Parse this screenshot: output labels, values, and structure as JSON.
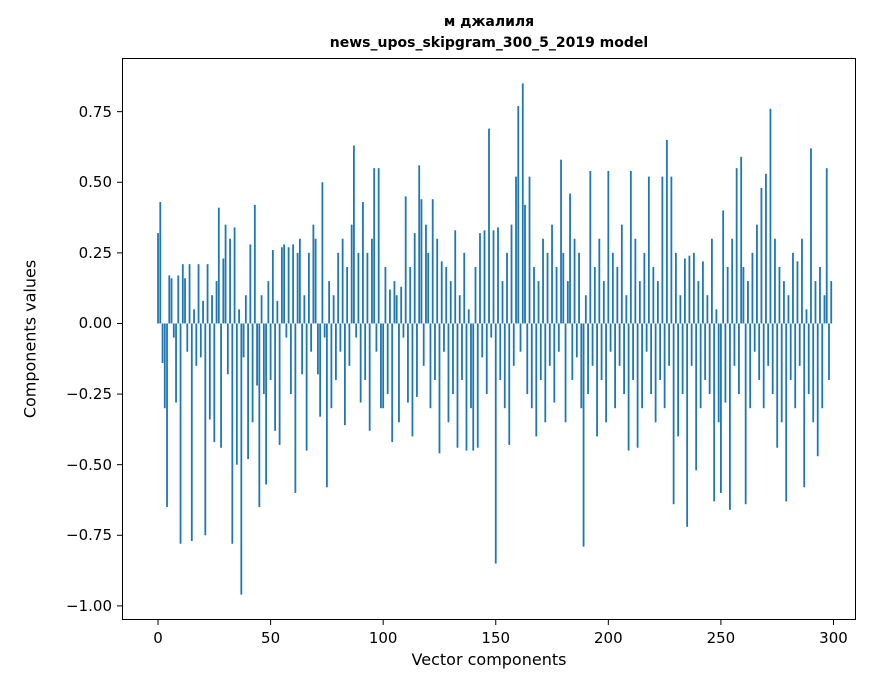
{
  "figure": {
    "title_line1": "м джалиля",
    "title_line2": "news_upos_skipgram_300_5_2019 model",
    "xlabel": "Vector components",
    "ylabel": "Components values"
  },
  "chart_data": {
    "type": "bar",
    "title": "м джалиля\nnews_upos_skipgram_300_5_2019 model",
    "xlabel": "Vector components",
    "ylabel": "Components values",
    "bar_color": "#1f77b4",
    "grid": false,
    "legend": null,
    "x_ticks": [
      0,
      50,
      100,
      150,
      200,
      250,
      300
    ],
    "y_ticks": [
      -1.0,
      -0.75,
      -0.5,
      -0.25,
      0.0,
      0.25,
      0.5,
      0.75
    ],
    "xlim": [
      -16,
      310
    ],
    "ylim": [
      -1.05,
      0.94
    ],
    "x_start": 0,
    "values": [
      0.32,
      0.43,
      -0.14,
      -0.3,
      -0.65,
      0.17,
      0.16,
      -0.05,
      -0.28,
      0.17,
      -0.78,
      0.21,
      0.16,
      -0.1,
      0.21,
      -0.77,
      0.05,
      -0.15,
      0.21,
      -0.12,
      0.08,
      -0.75,
      0.21,
      -0.34,
      0.1,
      -0.42,
      0.15,
      0.41,
      -0.44,
      0.23,
      0.35,
      -0.18,
      0.3,
      -0.78,
      0.34,
      -0.5,
      0.05,
      -0.96,
      -0.12,
      0.1,
      -0.48,
      0.28,
      -0.35,
      0.42,
      -0.22,
      -0.65,
      0.1,
      -0.25,
      -0.57,
      0.15,
      -0.2,
      0.26,
      -0.38,
      0.08,
      -0.43,
      0.27,
      0.28,
      -0.05,
      0.27,
      -0.25,
      0.28,
      -0.6,
      0.25,
      0.3,
      -0.18,
      0.1,
      -0.45,
      0.25,
      -0.1,
      0.35,
      0.3,
      -0.18,
      -0.33,
      0.5,
      -0.05,
      -0.58,
      0.15,
      -0.3,
      0.1,
      -0.2,
      0.25,
      -0.1,
      0.3,
      -0.36,
      0.2,
      -0.15,
      0.35,
      0.63,
      -0.05,
      0.25,
      -0.28,
      0.43,
      -0.2,
      0.25,
      -0.38,
      0.3,
      0.55,
      -0.1,
      0.55,
      -0.3,
      -0.3,
      0.2,
      -0.25,
      0.12,
      -0.42,
      0.15,
      0.1,
      -0.35,
      0.13,
      -0.05,
      0.45,
      -0.28,
      0.2,
      -0.4,
      0.32,
      -0.26,
      0.56,
      0.44,
      -0.15,
      0.35,
      0.25,
      -0.3,
      0.44,
      -0.2,
      0.3,
      -0.46,
      0.22,
      -0.1,
      0.2,
      -0.35,
      0.15,
      -0.25,
      0.33,
      -0.44,
      0.1,
      -0.2,
      0.25,
      -0.45,
      0.05,
      -0.3,
      -0.45,
      0.2,
      -0.44,
      0.32,
      -0.12,
      0.33,
      -0.25,
      0.69,
      -0.05,
      0.33,
      -0.85,
      0.34,
      -0.2,
      0.15,
      -0.3,
      0.25,
      -0.43,
      0.35,
      -0.15,
      0.52,
      0.77,
      -0.1,
      0.85,
      0.42,
      -0.25,
      0.52,
      -0.3,
      0.2,
      -0.4,
      0.15,
      -0.2,
      0.3,
      -0.35,
      0.25,
      -0.15,
      0.35,
      -0.28,
      0.2,
      -0.1,
      0.58,
      0.25,
      -0.35,
      0.15,
      0.46,
      -0.2,
      0.3,
      -0.12,
      0.25,
      -0.3,
      -0.79,
      0.1,
      -0.25,
      0.54,
      -0.15,
      0.2,
      -0.4,
      0.3,
      -0.2,
      0.15,
      -0.35,
      0.54,
      -0.1,
      0.25,
      -0.3,
      0.2,
      -0.15,
      0.35,
      -0.25,
      0.1,
      -0.45,
      0.54,
      -0.2,
      0.3,
      -0.44,
      0.15,
      -0.3,
      0.25,
      -0.1,
      0.52,
      -0.25,
      0.2,
      -0.35,
      0.15,
      -0.2,
      0.52,
      -0.3,
      0.65,
      -0.15,
      0.52,
      -0.64,
      0.25,
      -0.4,
      0.1,
      -0.25,
      0.23,
      -0.72,
      0.24,
      -0.15,
      0.25,
      -0.52,
      0.15,
      -0.3,
      0.22,
      -0.2,
      0.1,
      -0.25,
      0.3,
      -0.63,
      0.05,
      -0.35,
      -0.6,
      0.4,
      -0.28,
      0.2,
      -0.66,
      0.3,
      -0.15,
      0.55,
      -0.25,
      0.59,
      0.2,
      -0.64,
      0.15,
      -0.3,
      0.25,
      -0.1,
      0.35,
      -0.2,
      0.48,
      -0.3,
      0.53,
      -0.15,
      0.76,
      -0.25,
      0.3,
      -0.44,
      0.2,
      -0.35,
      0.15,
      -0.63,
      0.1,
      -0.2,
      0.25,
      -0.3,
      0.22,
      -0.15,
      0.3,
      -0.58,
      0.05,
      -0.25,
      0.62,
      -0.35,
      0.15,
      -0.47,
      0.2,
      -0.3,
      0.1,
      0.55,
      -0.2,
      0.15
    ]
  }
}
